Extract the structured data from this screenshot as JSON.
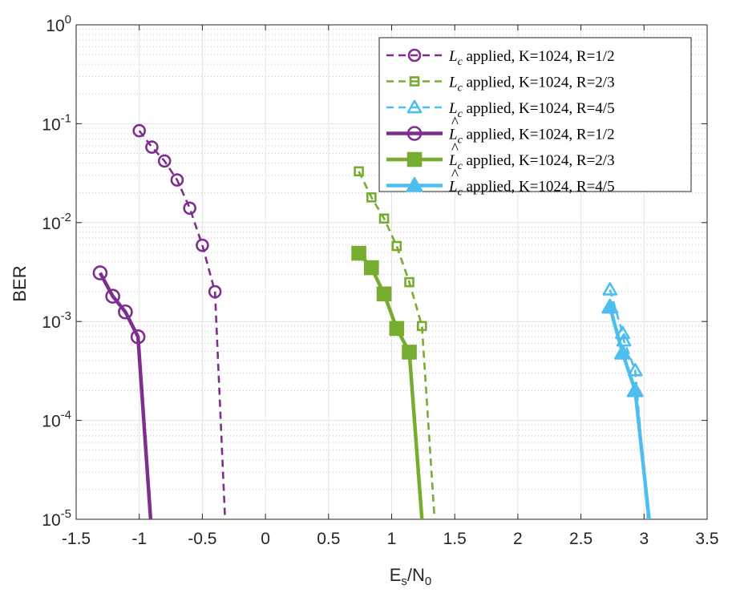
{
  "chart_data": {
    "type": "line",
    "title": "",
    "xlabel": "E_s/N_0",
    "xlabel_parts": {
      "main1": "E",
      "sub1": "s",
      "slash": "/N",
      "sub2": "0"
    },
    "ylabel": "BER",
    "xlim": [
      -1.5,
      3.5
    ],
    "ylim": [
      1e-05,
      1
    ],
    "yscale": "log",
    "grid": true,
    "legend_position": "top-right",
    "x_ticks": [
      "-1.5",
      "-1",
      "-0.5",
      "0",
      "0.5",
      "1",
      "1.5",
      "2",
      "2.5",
      "3",
      "3.5"
    ],
    "y_ticks": [
      {
        "base": "10",
        "exp": "0"
      },
      {
        "base": "10",
        "exp": "-1"
      },
      {
        "base": "10",
        "exp": "-2"
      },
      {
        "base": "10",
        "exp": "-3"
      },
      {
        "base": "10",
        "exp": "-4"
      },
      {
        "base": "10",
        "exp": "-5"
      }
    ],
    "series": [
      {
        "name": "L_c applied, K=1024, R=1/2",
        "label_symbol": "L",
        "label_sub": "c",
        "hat": false,
        "label_rest": " applied, K=1024, R=1/2",
        "color": "#7E2F8E",
        "style": "dashed",
        "marker": "circle",
        "filled": false,
        "x": [
          -1.0,
          -0.9,
          -0.8,
          -0.7,
          -0.6,
          -0.5,
          -0.4
        ],
        "y": [
          0.085,
          0.058,
          0.042,
          0.027,
          0.014,
          0.0059,
          0.002
        ],
        "tail": [
          -0.32,
          1e-05
        ]
      },
      {
        "name": "L_c applied, K=1024, R=2/3",
        "label_symbol": "L",
        "label_sub": "c",
        "hat": false,
        "label_rest": " applied, K=1024, R=2/3",
        "color": "#77AC30",
        "style": "dashed",
        "marker": "square",
        "filled": false,
        "x": [
          0.74,
          0.84,
          0.94,
          1.04,
          1.14,
          1.24
        ],
        "y": [
          0.033,
          0.018,
          0.011,
          0.0058,
          0.0025,
          0.0009
        ],
        "tail": [
          1.34,
          1e-05
        ]
      },
      {
        "name": "L_c applied, K=1024, R=4/5",
        "label_symbol": "L",
        "label_sub": "c",
        "hat": false,
        "label_rest": " applied, K=1024, R=4/5",
        "color": "#4DBEEE",
        "style": "dashed",
        "marker": "triangle",
        "filled": false,
        "x": [
          2.73,
          2.83,
          2.84,
          2.93
        ],
        "y": [
          0.0021,
          0.00076,
          0.00064,
          0.00032
        ],
        "tail": [
          3.03,
          1e-05
        ]
      },
      {
        "name": "L̂_c applied, K=1024, R=1/2",
        "label_symbol": "L",
        "label_sub": "c",
        "hat": true,
        "label_rest": " applied, K=1024, R=1/2",
        "color": "#7E2F8E",
        "style": "solid",
        "marker": "circle",
        "filled": false,
        "x": [
          -1.31,
          -1.21,
          -1.11,
          -1.01
        ],
        "y": [
          0.0031,
          0.0018,
          0.00125,
          0.0007
        ],
        "tail": [
          -0.91,
          1e-05
        ]
      },
      {
        "name": "L̂_c applied, K=1024, R=2/3",
        "label_symbol": "L",
        "label_sub": "c",
        "hat": true,
        "label_rest": " applied, K=1024, R=2/3",
        "color": "#77AC30",
        "style": "solid",
        "marker": "square",
        "filled": true,
        "x": [
          0.74,
          0.84,
          0.94,
          1.04,
          1.14
        ],
        "y": [
          0.0049,
          0.0035,
          0.0019,
          0.00085,
          0.00049
        ],
        "tail": [
          1.24,
          1e-05
        ]
      },
      {
        "name": "L̂_c applied, K=1024, R=4/5",
        "label_symbol": "L",
        "label_sub": "c",
        "hat": true,
        "label_rest": " applied, K=1024, R=4/5",
        "color": "#4DBEEE",
        "style": "solid",
        "marker": "triangle",
        "filled": true,
        "x": [
          2.73,
          2.83,
          2.93
        ],
        "y": [
          0.0014,
          0.00048,
          0.0002
        ],
        "tail": [
          3.04,
          1e-05
        ]
      }
    ]
  }
}
